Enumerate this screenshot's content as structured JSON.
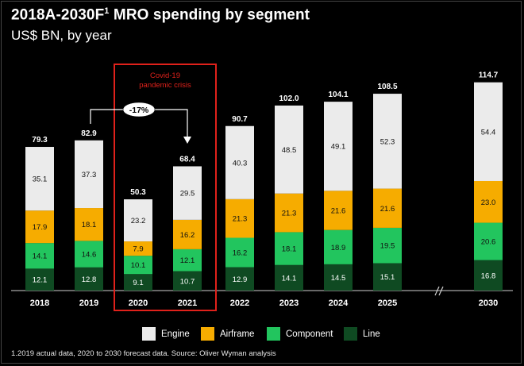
{
  "title": {
    "main": "2018A-2030F",
    "superscript": "1",
    "rest": " MRO spending by segment"
  },
  "subtitle": "US$ BN, by year",
  "annotation": {
    "covid_label_line1": "Covid-19",
    "covid_label_line2": "pandemic crisis",
    "change_label": "-17%"
  },
  "footnote": "1.2019 actual data, 2020 to 2030 forecast data. Source: Oliver Wyman analysis",
  "colors": {
    "engine": "#ebebeb",
    "airframe": "#f6ac00",
    "component": "#22c55e",
    "line": "#0f4a22",
    "highlight_box": "#e0211b"
  },
  "chart_data": {
    "type": "bar",
    "stacked": true,
    "categories": [
      "2018",
      "2019",
      "2020",
      "2021",
      "2022",
      "2023",
      "2024",
      "2025",
      "2030"
    ],
    "series": [
      {
        "name": "Line",
        "values": [
          12.1,
          12.8,
          9.1,
          10.7,
          12.9,
          14.1,
          14.5,
          15.1,
          16.8
        ]
      },
      {
        "name": "Component",
        "values": [
          14.1,
          14.6,
          10.1,
          12.1,
          16.2,
          18.1,
          18.9,
          19.5,
          20.6
        ]
      },
      {
        "name": "Airframe",
        "values": [
          17.9,
          18.1,
          7.9,
          16.2,
          21.3,
          21.3,
          21.6,
          21.6,
          23.0
        ]
      },
      {
        "name": "Engine",
        "values": [
          35.1,
          37.3,
          23.2,
          29.5,
          40.3,
          48.5,
          49.1,
          52.3,
          54.4
        ]
      }
    ],
    "totals": [
      "79.3",
      "82.9",
      "50.3",
      "68.4",
      "90.7",
      "102.0",
      "104.1",
      "108.5",
      "114.7"
    ],
    "legend": [
      "Engine",
      "Airframe",
      "Component",
      "Line"
    ],
    "ylim": [
      0,
      120
    ],
    "grid": false,
    "axis_break_between": [
      "2025",
      "2030"
    ],
    "highlighted_categories": [
      "2020",
      "2021"
    ]
  }
}
